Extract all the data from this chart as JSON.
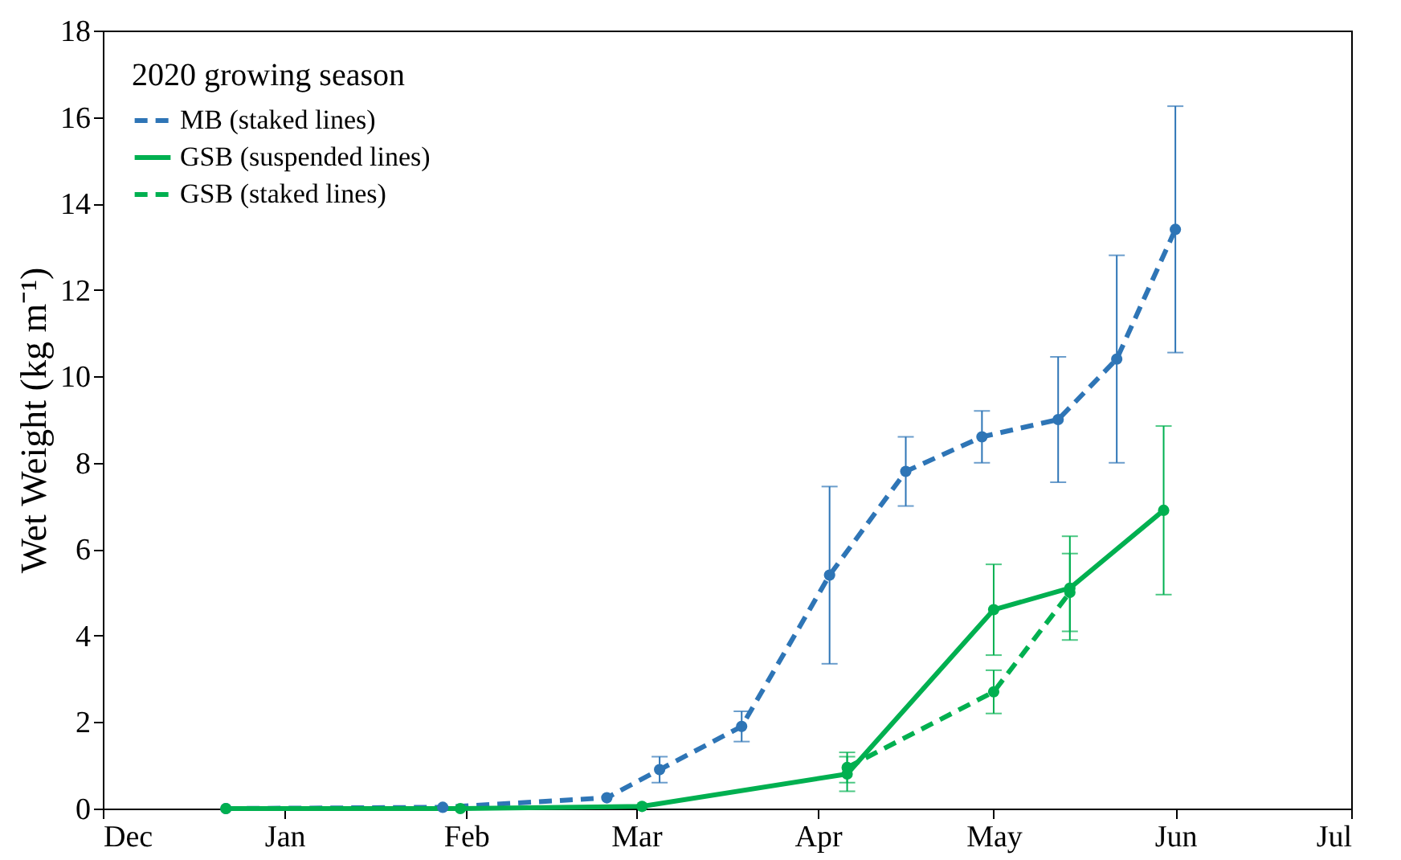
{
  "chart_data": {
    "type": "line",
    "ylabel": "Wet Weight (kg m⁻¹)",
    "legend_title": "2020 growing season",
    "legend": "top left",
    "marker": "circle",
    "grid": false,
    "xlim": [
      "2019-12-01",
      "2020-07-01"
    ],
    "xticks": [
      {
        "value": "2019-12-01",
        "label": "Dec"
      },
      {
        "value": "2020-01-01",
        "label": "Jan"
      },
      {
        "value": "2020-02-01",
        "label": "Feb"
      },
      {
        "value": "2020-03-01",
        "label": "Mar"
      },
      {
        "value": "2020-04-01",
        "label": "Apr"
      },
      {
        "value": "2020-05-01",
        "label": "May"
      },
      {
        "value": "2020-06-01",
        "label": "Jun"
      },
      {
        "value": "2020-07-01",
        "label": "Jul"
      }
    ],
    "ylim": [
      0,
      18
    ],
    "yticks": [
      0,
      2,
      4,
      6,
      8,
      10,
      12,
      14,
      16,
      18
    ],
    "series": [
      {
        "name": "MB (staked lines)",
        "color": "#2e75b6",
        "line_style": "dashed",
        "x": [
          "2019-12-22",
          "2020-01-28",
          "2020-02-25",
          "2020-03-05",
          "2020-03-19",
          "2020-04-03",
          "2020-04-16",
          "2020-04-29",
          "2020-05-12",
          "2020-05-22",
          "2020-06-01"
        ],
        "values": [
          0,
          0.03,
          0.25,
          0.9,
          1.9,
          5.4,
          7.8,
          8.6,
          9.0,
          10.4,
          13.4
        ],
        "errors": [
          null,
          null,
          null,
          0.3,
          0.35,
          2.05,
          0.8,
          0.6,
          1.45,
          2.4,
          2.85
        ]
      },
      {
        "name": "GSB (suspended lines)",
        "color": "#00b050",
        "line_style": "solid",
        "x": [
          "2019-12-22",
          "2020-01-31",
          "2020-03-02",
          "2020-04-06",
          "2020-05-01",
          "2020-05-14",
          "2020-05-30"
        ],
        "values": [
          0,
          0,
          0.05,
          0.8,
          4.6,
          5.1,
          6.9
        ],
        "errors": [
          null,
          null,
          null,
          0.4,
          1.05,
          1.2,
          1.95
        ]
      },
      {
        "name": "GSB (staked lines)",
        "color": "#00b050",
        "line_style": "dashed",
        "x": [
          "2020-04-06",
          "2020-05-01",
          "2020-05-14"
        ],
        "values": [
          0.95,
          2.7,
          5.0
        ],
        "errors": [
          0.35,
          0.5,
          0.9
        ]
      }
    ]
  }
}
